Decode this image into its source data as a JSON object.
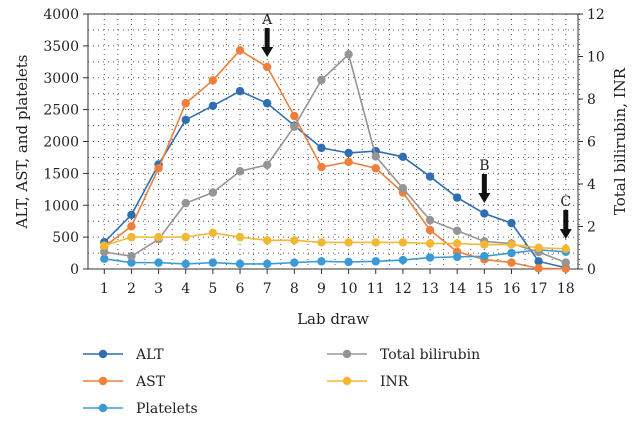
{
  "chart_data": {
    "type": "line",
    "x_label": "Lab draw",
    "y_left_label": "ALT, AST, and platelets",
    "y_right_label": "Total bilirubin, INR",
    "x": [
      1,
      2,
      3,
      4,
      5,
      6,
      7,
      8,
      9,
      10,
      11,
      12,
      13,
      14,
      15,
      16,
      17,
      18
    ],
    "y_left_range": [
      0,
      4000
    ],
    "y_left_ticks": [
      0,
      500,
      1000,
      1500,
      2000,
      2500,
      3000,
      3500,
      4000
    ],
    "y_right_range": [
      0,
      12
    ],
    "y_right_ticks": [
      0,
      2,
      4,
      6,
      8,
      10,
      12
    ],
    "grid": "dotted",
    "legend_placement": "bottom",
    "series": [
      {
        "name": "ALT",
        "axis": "left",
        "color": "#2f6eb2",
        "values": [
          420,
          850,
          1640,
          2340,
          2560,
          2790,
          2600,
          2250,
          1900,
          1820,
          1850,
          1760,
          1450,
          1120,
          870,
          720,
          120,
          20
        ]
      },
      {
        "name": "AST",
        "axis": "left",
        "color": "#ef7f3a",
        "values": [
          350,
          670,
          1580,
          2600,
          2960,
          3430,
          3170,
          2400,
          1600,
          1680,
          1580,
          1200,
          610,
          270,
          150,
          100,
          10,
          5
        ]
      },
      {
        "name": "Platelets",
        "axis": "left",
        "color": "#3a9ad6",
        "values": [
          160,
          100,
          100,
          80,
          100,
          80,
          80,
          100,
          120,
          110,
          120,
          140,
          180,
          190,
          200,
          250,
          300,
          270
        ]
      },
      {
        "name": "Total bilirubin",
        "axis": "right",
        "color": "#959595",
        "values": [
          0.8,
          0.6,
          1.4,
          3.1,
          3.6,
          4.6,
          4.9,
          6.7,
          8.9,
          10.1,
          5.3,
          3.8,
          2.3,
          1.8,
          1.3,
          1.2,
          0.8,
          0.3
        ]
      },
      {
        "name": "INR",
        "axis": "right",
        "color": "#f4b731",
        "values": [
          1.1,
          1.5,
          1.5,
          1.5,
          1.7,
          1.5,
          1.35,
          1.35,
          1.25,
          1.25,
          1.25,
          1.25,
          1.2,
          1.2,
          1.15,
          1.15,
          1.0,
          0.95
        ]
      }
    ],
    "annotations": [
      {
        "label": "A",
        "x": 7
      },
      {
        "label": "B",
        "x": 15
      },
      {
        "label": "C",
        "x": 18
      }
    ]
  }
}
